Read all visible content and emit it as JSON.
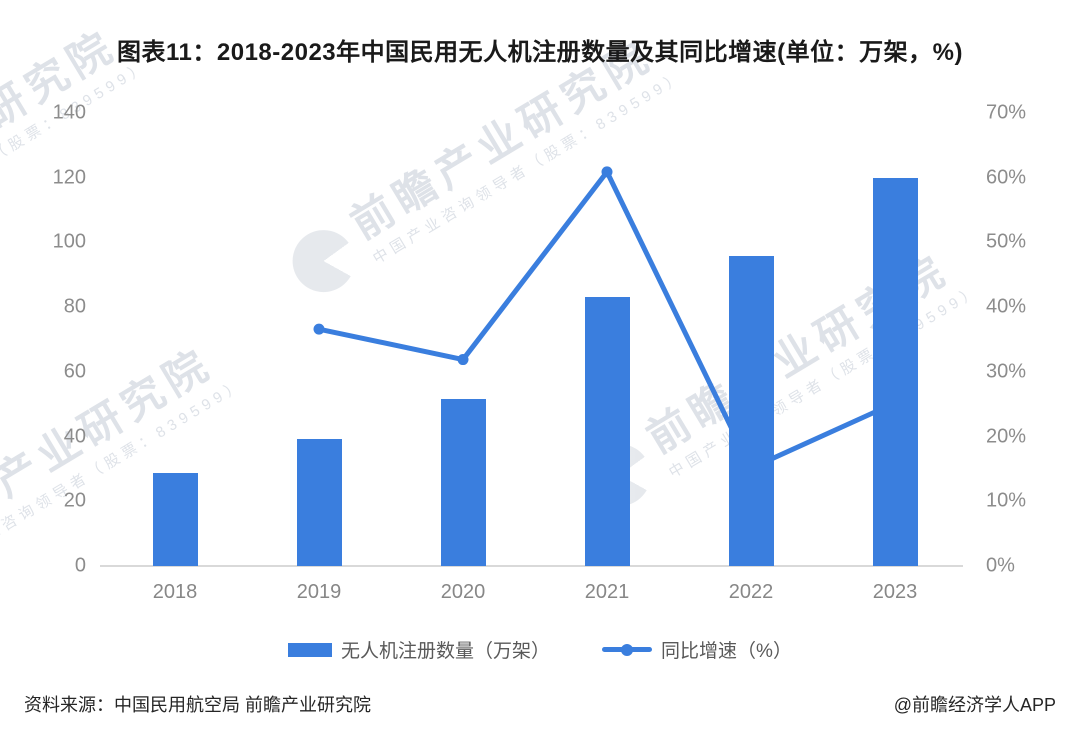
{
  "title": "图表11：2018-2023年中国民用无人机注册数量及其同比增速(单位：万架，%)",
  "chart_data": {
    "type": "bar",
    "subtype": "combo-bar-line-dual-axis",
    "title": "图表11：2018-2023年中国民用无人机注册数量及其同比增速(单位：万架，%)",
    "categories": [
      "2018",
      "2019",
      "2020",
      "2021",
      "2022",
      "2023"
    ],
    "series": [
      {
        "name": "无人机注册数量（万架）",
        "chart": "bar",
        "y_axis": "left",
        "values": [
          28.7,
          39.2,
          51.7,
          83.2,
          95.8,
          119.9
        ]
      },
      {
        "name": "同比增速（%）",
        "chart": "line",
        "y_axis": "right",
        "values": [
          null,
          36.6,
          31.9,
          60.9,
          15.1,
          25.2
        ]
      }
    ],
    "left_axis": {
      "unit": "万架",
      "min": 0,
      "max": 140,
      "step": 20,
      "ticks": [
        "0",
        "20",
        "40",
        "60",
        "80",
        "100",
        "120",
        "140"
      ]
    },
    "right_axis": {
      "unit": "%",
      "min": 0,
      "max": 70,
      "step": 10,
      "ticks": [
        "0%",
        "10%",
        "20%",
        "30%",
        "40%",
        "50%",
        "60%",
        "70%"
      ]
    },
    "grid": false,
    "legend_position": "bottom",
    "colors": {
      "bar": "#3a7ede",
      "line": "#3a7ede"
    }
  },
  "legend": [
    {
      "label": "无人机注册数量（万架）"
    },
    {
      "label": "同比增速（%）"
    }
  ],
  "footer": {
    "source": "资料来源：中国民用航空局 前瞻产业研究院",
    "credit": "@前瞻经济学人APP"
  },
  "watermark": {
    "text": "前瞻产业研究院",
    "subtext": "中国产业咨询领导者（股票：839599）"
  }
}
